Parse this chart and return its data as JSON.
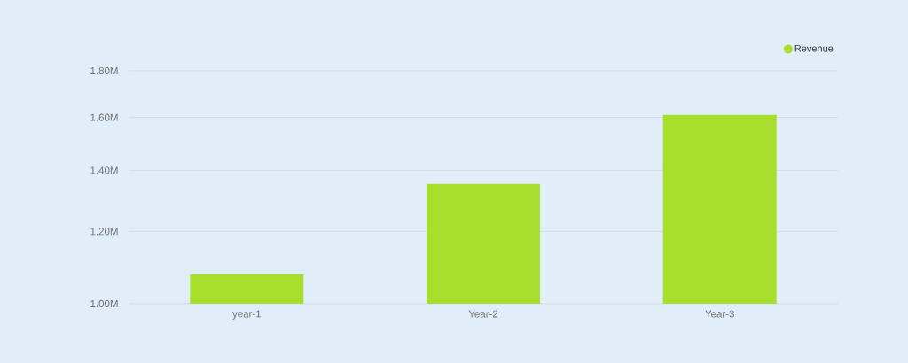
{
  "chart_data": {
    "type": "bar",
    "categories": [
      "year-1",
      "Year-2",
      "Year-3"
    ],
    "series": [
      {
        "name": "Revenue",
        "color": "#a8de2e",
        "values": [
          1077000,
          1353000,
          1610000
        ]
      }
    ],
    "log": "y",
    "ylim": [
      1000000,
      1800000
    ],
    "yticks": [
      {
        "value": 1000000,
        "label": "1.00M"
      },
      {
        "value": 1200000,
        "label": "1.20M"
      },
      {
        "value": 1400000,
        "label": "1.40M"
      },
      {
        "value": 1600000,
        "label": "1.60M"
      },
      {
        "value": 1800000,
        "label": "1.80M"
      }
    ],
    "grid": "y",
    "legend": "top right"
  }
}
